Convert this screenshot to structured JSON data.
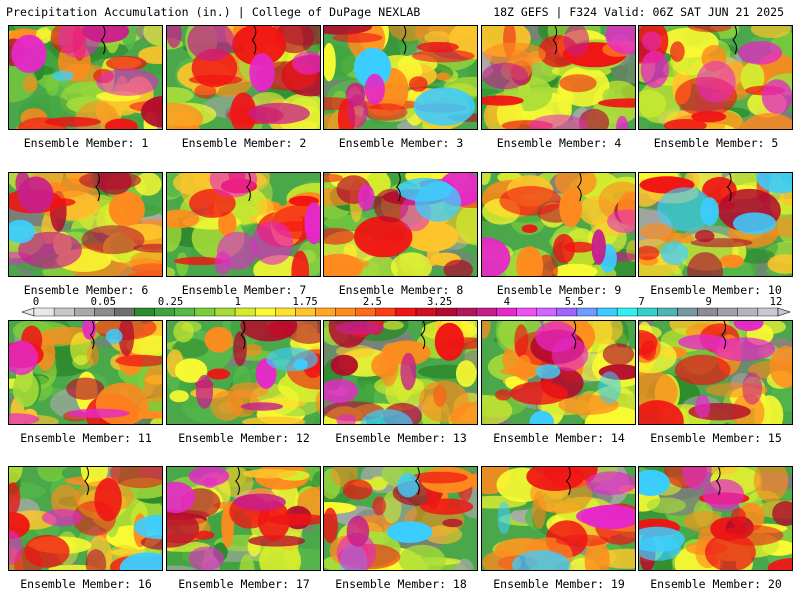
{
  "header": {
    "left": "Precipitation Accumulation (in.) | College of DuPage NEXLAB",
    "right": "18Z GEFS | F324 Valid: 06Z SAT JUN 21 2025"
  },
  "members": [
    "Ensemble Member: 1",
    "Ensemble Member: 2",
    "Ensemble Member: 3",
    "Ensemble Member: 4",
    "Ensemble Member: 5",
    "Ensemble Member: 6",
    "Ensemble Member: 7",
    "Ensemble Member: 8",
    "Ensemble Member: 9",
    "Ensemble Member: 10",
    "Ensemble Member: 11",
    "Ensemble Member: 12",
    "Ensemble Member: 13",
    "Ensemble Member: 14",
    "Ensemble Member: 15",
    "Ensemble Member: 16",
    "Ensemble Member: 17",
    "Ensemble Member: 18",
    "Ensemble Member: 19",
    "Ensemble Member: 20"
  ],
  "scale": {
    "tick_labels": [
      "0",
      "0.05",
      "0.25",
      "1",
      "1.75",
      "2.5",
      "3.25",
      "4",
      "5.5",
      "7",
      "9",
      "12"
    ],
    "colors": [
      "#e8e8e8",
      "#c8c8c8",
      "#a9a9a9",
      "#8c8c8c",
      "#6f6f6f",
      "#2e8b2e",
      "#3fa33f",
      "#56b84a",
      "#7ccd3c",
      "#a6dc3a",
      "#d4ec2e",
      "#fafa32",
      "#ffe22e",
      "#ffc52b",
      "#ffa724",
      "#ff8a1e",
      "#ff6a1a",
      "#ff3c16",
      "#f01414",
      "#d20f1e",
      "#b40a2d",
      "#b4145a",
      "#c81e8c",
      "#e628c8",
      "#f050f0",
      "#d264ff",
      "#a064ff",
      "#6e9bff",
      "#3ccdff",
      "#32f0f0",
      "#32d2c8",
      "#50b4b4",
      "#7896a0",
      "#8c8c96",
      "#a0a0aa",
      "#b4b4be",
      "#c8c8d2"
    ]
  }
}
